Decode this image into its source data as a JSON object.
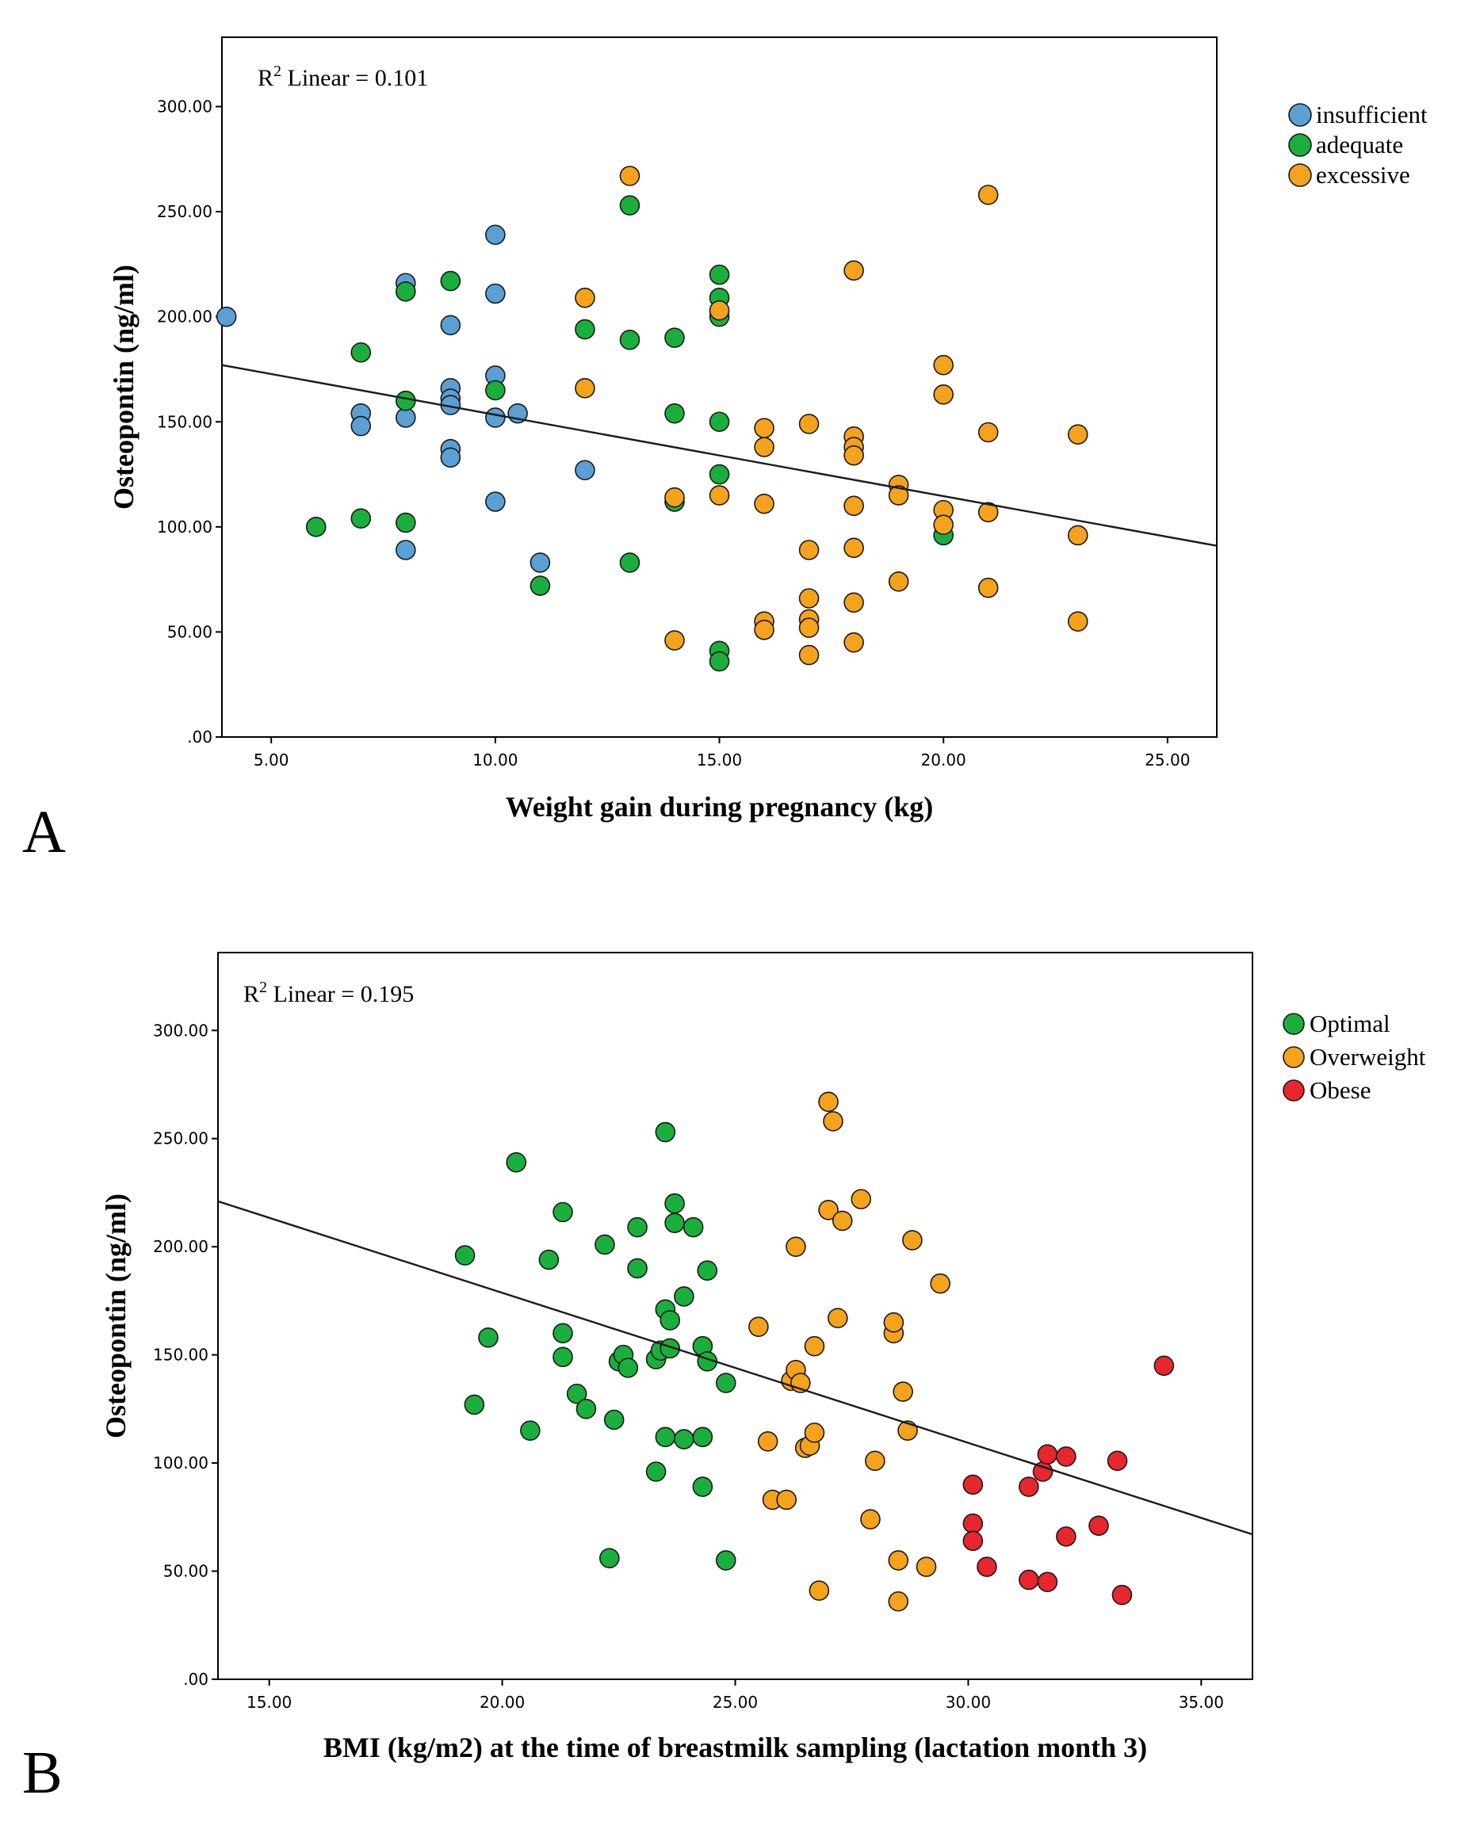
{
  "chart_data": [
    {
      "type": "scatter",
      "panel_label": "A",
      "annotation": {
        "prefix": "R",
        "sup": "2",
        "text": " Linear = 0.101"
      },
      "xlabel": "Weight gain during pregnancy (kg)",
      "ylabel": "Osteopontin (ng/ml)",
      "xlim": [
        3.9,
        26.1
      ],
      "ylim": [
        0,
        333
      ],
      "xticks": [
        5,
        10,
        15,
        20,
        25
      ],
      "xtick_labels": [
        "5.00",
        "10.00",
        "15.00",
        "20.00",
        "25.00"
      ],
      "yticks": [
        0,
        50,
        100,
        150,
        200,
        250,
        300
      ],
      "ytick_labels": [
        ".00",
        "50.00",
        "100.00",
        "150.00",
        "200.00",
        "250.00",
        "300.00"
      ],
      "legend_position": "right",
      "regression_line": {
        "x": [
          3.9,
          26.1
        ],
        "y": [
          177,
          91
        ]
      },
      "series": [
        {
          "name": "insufficient",
          "color": "#5b9fd4",
          "points": [
            [
              4,
              200
            ],
            [
              7,
              154
            ],
            [
              7,
              148
            ],
            [
              8,
              216
            ],
            [
              8,
              152
            ],
            [
              8,
              89
            ],
            [
              9,
              196
            ],
            [
              9,
              166
            ],
            [
              9,
              161
            ],
            [
              9,
              158
            ],
            [
              9,
              137
            ],
            [
              9,
              133
            ],
            [
              10,
              239
            ],
            [
              10,
              211
            ],
            [
              10,
              172
            ],
            [
              10,
              152
            ],
            [
              10,
              112
            ],
            [
              10.5,
              154
            ],
            [
              11,
              83
            ],
            [
              12,
              127
            ]
          ]
        },
        {
          "name": "adequate",
          "color": "#1aaf3c",
          "points": [
            [
              6,
              100
            ],
            [
              7,
              183
            ],
            [
              7,
              104
            ],
            [
              8,
              212
            ],
            [
              8,
              160
            ],
            [
              8,
              102
            ],
            [
              9,
              217
            ],
            [
              10,
              165
            ],
            [
              11,
              72
            ],
            [
              12,
              194
            ],
            [
              13,
              253
            ],
            [
              13,
              189
            ],
            [
              13,
              83
            ],
            [
              14,
              190
            ],
            [
              14,
              154
            ],
            [
              14,
              112
            ],
            [
              15,
              220
            ],
            [
              15,
              209
            ],
            [
              15,
              200
            ],
            [
              15,
              150
            ],
            [
              15,
              125
            ],
            [
              15,
              41
            ],
            [
              15,
              36
            ],
            [
              20,
              96
            ]
          ]
        },
        {
          "name": "excessive",
          "color": "#f5a21c",
          "points": [
            [
              12,
              209
            ],
            [
              12,
              166
            ],
            [
              13,
              267
            ],
            [
              14,
              114
            ],
            [
              14,
              46
            ],
            [
              15,
              203
            ],
            [
              15,
              115
            ],
            [
              16,
              147
            ],
            [
              16,
              138
            ],
            [
              16,
              111
            ],
            [
              16,
              55
            ],
            [
              16,
              51
            ],
            [
              17,
              149
            ],
            [
              17,
              89
            ],
            [
              17,
              66
            ],
            [
              17,
              56
            ],
            [
              17,
              52
            ],
            [
              17,
              39
            ],
            [
              18,
              222
            ],
            [
              18,
              143
            ],
            [
              18,
              138
            ],
            [
              18,
              134
            ],
            [
              18,
              110
            ],
            [
              18,
              90
            ],
            [
              18,
              64
            ],
            [
              18,
              45
            ],
            [
              19,
              120
            ],
            [
              19,
              115
            ],
            [
              19,
              74
            ],
            [
              20,
              177
            ],
            [
              20,
              163
            ],
            [
              20,
              108
            ],
            [
              20,
              101
            ],
            [
              21,
              258
            ],
            [
              21,
              145
            ],
            [
              21,
              107
            ],
            [
              21,
              71
            ],
            [
              23,
              144
            ],
            [
              23,
              96
            ],
            [
              23,
              55
            ]
          ]
        }
      ]
    },
    {
      "type": "scatter",
      "panel_label": "B",
      "annotation": {
        "prefix": "R",
        "sup": "2",
        "text": " Linear = 0.195"
      },
      "xlabel": "BMI (kg/m2) at the time of breastmilk sampling (lactation month 3)",
      "ylabel": "Osteopontin (ng/ml)",
      "xlim": [
        13.9,
        36.1
      ],
      "ylim": [
        0,
        336
      ],
      "xticks": [
        15,
        20,
        25,
        30,
        35
      ],
      "xtick_labels": [
        "15.00",
        "20.00",
        "25.00",
        "30.00",
        "35.00"
      ],
      "yticks": [
        0,
        50,
        100,
        150,
        200,
        250,
        300
      ],
      "ytick_labels": [
        ".00",
        "50.00",
        "100.00",
        "150.00",
        "200.00",
        "250.00",
        "300.00"
      ],
      "legend_position": "right",
      "regression_line": {
        "x": [
          13.9,
          36.1
        ],
        "y": [
          221,
          67
        ]
      },
      "series": [
        {
          "name": "Optimal",
          "color": "#1aaf3c",
          "points": [
            [
              19.2,
              196
            ],
            [
              19.4,
              127
            ],
            [
              19.7,
              158
            ],
            [
              20.3,
              239
            ],
            [
              20.6,
              115
            ],
            [
              21,
              194
            ],
            [
              21.3,
              216
            ],
            [
              21.3,
              160
            ],
            [
              21.3,
              149
            ],
            [
              21.6,
              132
            ],
            [
              21.8,
              125
            ],
            [
              22.2,
              201
            ],
            [
              22.3,
              56
            ],
            [
              22.4,
              120
            ],
            [
              22.5,
              147
            ],
            [
              22.6,
              150
            ],
            [
              22.7,
              144
            ],
            [
              22.9,
              209
            ],
            [
              22.9,
              190
            ],
            [
              23.3,
              148
            ],
            [
              23.3,
              96
            ],
            [
              23.4,
              152
            ],
            [
              23.5,
              253
            ],
            [
              23.5,
              171
            ],
            [
              23.5,
              112
            ],
            [
              23.6,
              166
            ],
            [
              23.6,
              153
            ],
            [
              23.7,
              220
            ],
            [
              23.7,
              211
            ],
            [
              23.9,
              177
            ],
            [
              23.9,
              111
            ],
            [
              24.1,
              209
            ],
            [
              24.3,
              154
            ],
            [
              24.3,
              112
            ],
            [
              24.3,
              89
            ],
            [
              24.4,
              189
            ],
            [
              24.4,
              147
            ],
            [
              24.8,
              137
            ],
            [
              24.8,
              55
            ]
          ]
        },
        {
          "name": "Overweight",
          "color": "#f5a21c",
          "points": [
            [
              25.5,
              163
            ],
            [
              25.7,
              110
            ],
            [
              25.8,
              83
            ],
            [
              26.1,
              83
            ],
            [
              26.2,
              138
            ],
            [
              26.3,
              200
            ],
            [
              26.3,
              143
            ],
            [
              26.4,
              137
            ],
            [
              26.5,
              107
            ],
            [
              26.6,
              108
            ],
            [
              26.7,
              114
            ],
            [
              26.7,
              154
            ],
            [
              26.8,
              41
            ],
            [
              27,
              267
            ],
            [
              27,
              217
            ],
            [
              27.1,
              258
            ],
            [
              27.2,
              167
            ],
            [
              27.3,
              212
            ],
            [
              27.7,
              222
            ],
            [
              27.9,
              74
            ],
            [
              28,
              101
            ],
            [
              28.4,
              160
            ],
            [
              28.4,
              165
            ],
            [
              28.5,
              55
            ],
            [
              28.5,
              36
            ],
            [
              28.6,
              133
            ],
            [
              28.7,
              115
            ],
            [
              28.8,
              203
            ],
            [
              29.1,
              52
            ],
            [
              29.4,
              183
            ]
          ]
        },
        {
          "name": "Obese",
          "color": "#e8262e",
          "points": [
            [
              30.1,
              90
            ],
            [
              30.1,
              72
            ],
            [
              30.1,
              64
            ],
            [
              30.4,
              52
            ],
            [
              31.3,
              89
            ],
            [
              31.3,
              46
            ],
            [
              31.6,
              96
            ],
            [
              31.7,
              104
            ],
            [
              31.7,
              45
            ],
            [
              32.1,
              103
            ],
            [
              32.1,
              66
            ],
            [
              32.8,
              71
            ],
            [
              33.2,
              101
            ],
            [
              33.3,
              39
            ],
            [
              34.2,
              145
            ]
          ]
        }
      ]
    }
  ]
}
